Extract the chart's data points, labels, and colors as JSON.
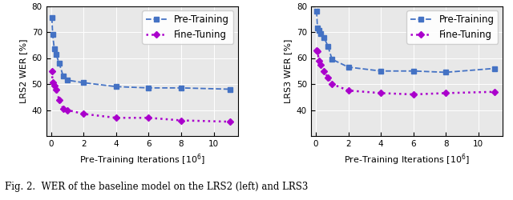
{
  "lrs2": {
    "pretrain_x": [
      0.05,
      0.1,
      0.2,
      0.3,
      0.5,
      0.75,
      1.0,
      2.0,
      4.0,
      6.0,
      8.0,
      11.0
    ],
    "pretrain_y": [
      75.5,
      69.0,
      63.5,
      61.5,
      58.0,
      53.0,
      51.5,
      50.5,
      49.0,
      48.5,
      48.5,
      48.0
    ],
    "finetune_x": [
      0.05,
      0.1,
      0.2,
      0.3,
      0.5,
      0.75,
      1.0,
      2.0,
      4.0,
      6.0,
      8.0,
      11.0
    ],
    "finetune_y": [
      55.0,
      50.5,
      49.5,
      48.0,
      44.0,
      40.5,
      40.0,
      38.5,
      37.0,
      37.0,
      36.0,
      35.5
    ],
    "ylabel": "LRS2 WER [%]",
    "ylim": [
      30,
      80
    ],
    "yticks": [
      40,
      50,
      60,
      70,
      80
    ]
  },
  "lrs3": {
    "pretrain_x": [
      0.05,
      0.1,
      0.2,
      0.3,
      0.5,
      0.75,
      1.0,
      2.0,
      4.0,
      6.0,
      8.0,
      11.0
    ],
    "pretrain_y": [
      78.0,
      71.5,
      70.5,
      69.5,
      68.0,
      64.5,
      59.5,
      56.5,
      55.0,
      55.0,
      54.5,
      56.0
    ],
    "finetune_x": [
      0.05,
      0.1,
      0.2,
      0.3,
      0.5,
      0.75,
      1.0,
      2.0,
      4.0,
      6.0,
      8.0,
      11.0
    ],
    "finetune_y": [
      63.0,
      62.5,
      59.0,
      57.5,
      55.0,
      52.5,
      50.0,
      47.5,
      46.5,
      46.0,
      46.5,
      47.0
    ],
    "ylabel": "LRS3 WER [%]",
    "ylim": [
      30,
      80
    ],
    "yticks": [
      40,
      50,
      60,
      70,
      80
    ]
  },
  "xlabel": "Pre-Training Iterations [$10^6$]",
  "pretrain_color": "#4472C4",
  "finetune_color": "#AA00CC",
  "pretrain_label": "Pre-Training",
  "finetune_label": "Fine-Tuning",
  "caption": "Fig. 2.  WER of the baseline model on the LRS2 (left) and LRS3",
  "legend_fontsize": 8.5,
  "axis_fontsize": 8,
  "tick_fontsize": 7.5,
  "caption_fontsize": 8.5,
  "bg_color": "#E8E8E8"
}
